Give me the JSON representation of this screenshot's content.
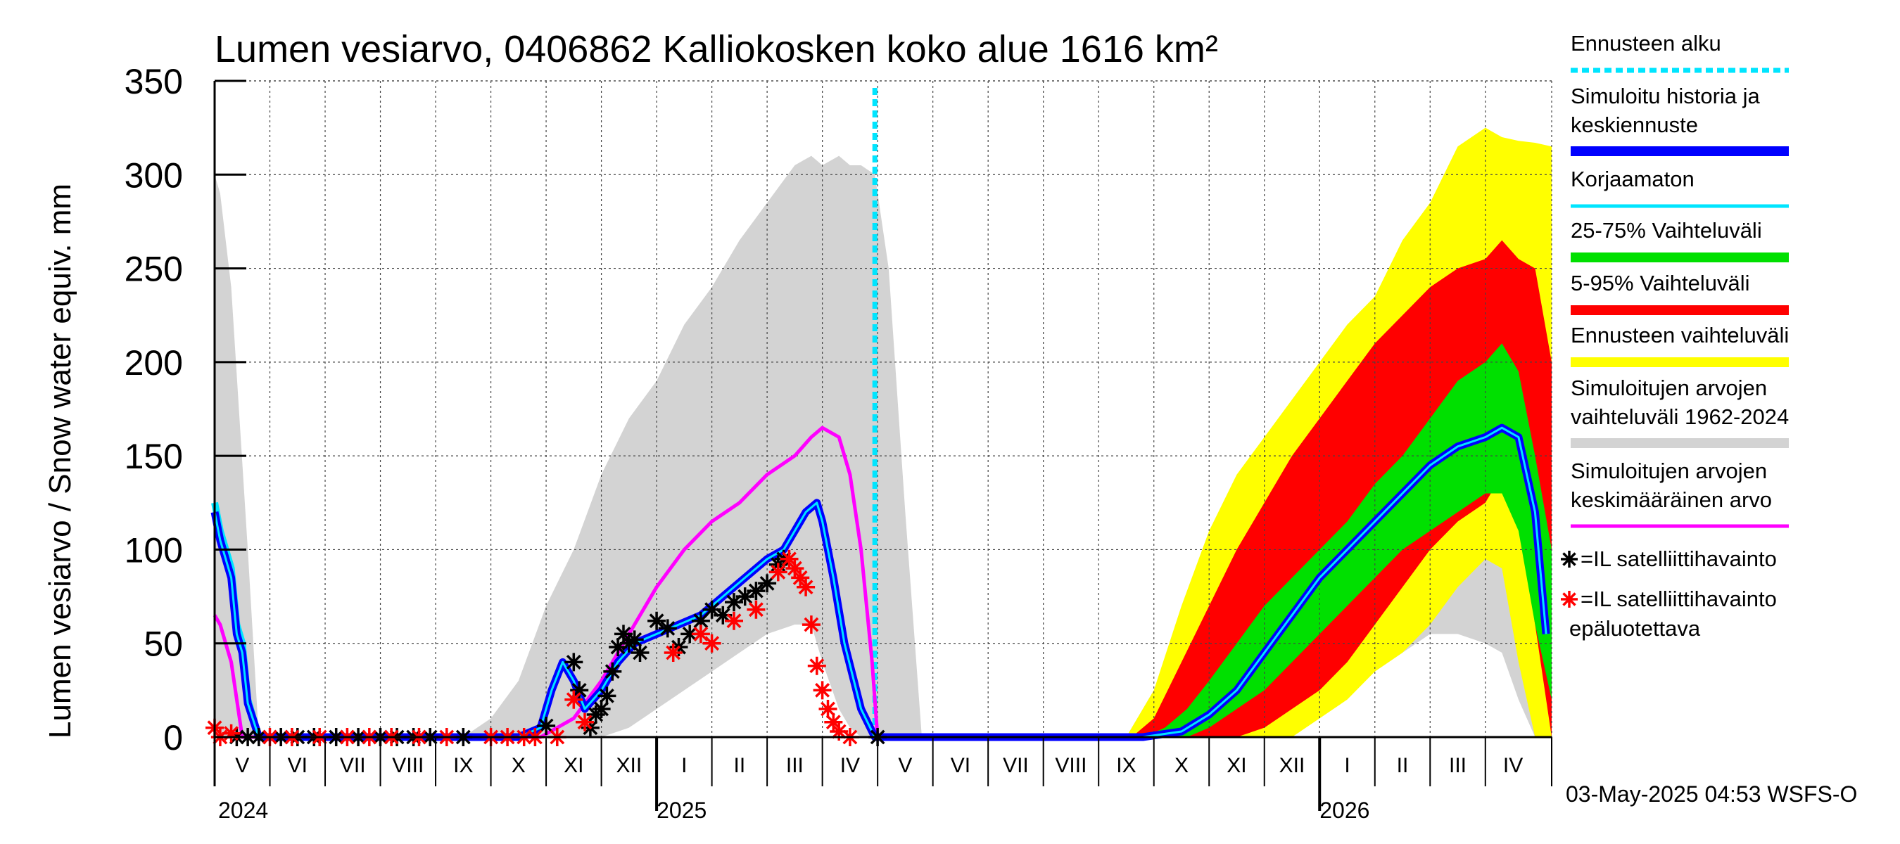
{
  "chart_data": {
    "type": "area",
    "title": "Lumen vesiarvo, 0406862 Kalliokosken koko alue 1616 km²",
    "ylabel": "Lumen vesiarvo / Snow water equiv.    mm",
    "ylim": [
      0,
      350
    ],
    "yticks": [
      0,
      50,
      100,
      150,
      200,
      250,
      300,
      350
    ],
    "x_unit": "month index (0 = 1 May 2024)",
    "xlim": [
      0,
      24.2
    ],
    "forecast_start": 11.95,
    "months": [
      {
        "label": "V",
        "x": 0
      },
      {
        "label": "VI",
        "x": 1
      },
      {
        "label": "VII",
        "x": 2
      },
      {
        "label": "VIII",
        "x": 3
      },
      {
        "label": "IX",
        "x": 4
      },
      {
        "label": "X",
        "x": 5
      },
      {
        "label": "XI",
        "x": 6
      },
      {
        "label": "XII",
        "x": 7
      },
      {
        "label": "I",
        "x": 8
      },
      {
        "label": "II",
        "x": 9
      },
      {
        "label": "III",
        "x": 10
      },
      {
        "label": "IV",
        "x": 11
      },
      {
        "label": "V",
        "x": 12
      },
      {
        "label": "VI",
        "x": 13
      },
      {
        "label": "VII",
        "x": 14
      },
      {
        "label": "VIII",
        "x": 15
      },
      {
        "label": "IX",
        "x": 16
      },
      {
        "label": "X",
        "x": 17
      },
      {
        "label": "XI",
        "x": 18
      },
      {
        "label": "XII",
        "x": 19
      },
      {
        "label": "I",
        "x": 20
      },
      {
        "label": "II",
        "x": 21
      },
      {
        "label": "III",
        "x": 22
      },
      {
        "label": "IV",
        "x": 23
      }
    ],
    "years": [
      {
        "label": "2024",
        "x": 0
      },
      {
        "label": "2025",
        "x": 8
      },
      {
        "label": "2026",
        "x": 20
      }
    ],
    "series": [
      {
        "name": "Simuloitujen arvojen vaihteluväli 1962-2024",
        "color": "#d3d3d3",
        "kind": "band",
        "x": [
          0,
          0.1,
          0.3,
          0.6,
          0.8,
          4.5,
          5.0,
          5.5,
          6.0,
          6.5,
          7.0,
          7.5,
          8.0,
          8.5,
          9.0,
          9.5,
          10.0,
          10.5,
          10.8,
          11.0,
          11.3,
          11.5,
          11.7,
          11.95,
          12.2,
          12.5,
          12.8,
          16.5,
          17.0,
          17.5,
          18.0,
          18.5,
          19.0,
          19.5,
          20.0,
          20.5,
          21.0,
          21.5,
          22.0,
          22.5,
          23.0,
          23.3,
          23.6,
          23.9,
          24.2
        ],
        "upper": [
          300,
          290,
          240,
          100,
          0,
          0,
          10,
          30,
          70,
          100,
          140,
          170,
          190,
          220,
          240,
          265,
          285,
          305,
          310,
          305,
          310,
          305,
          305,
          300,
          250,
          120,
          0,
          0,
          25,
          60,
          100,
          130,
          150,
          170,
          190,
          210,
          230,
          255,
          275,
          300,
          310,
          315,
          305,
          300,
          300
        ],
        "lower": [
          0,
          0,
          0,
          0,
          0,
          0,
          0,
          0,
          0,
          0,
          0,
          5,
          15,
          25,
          35,
          45,
          55,
          60,
          60,
          40,
          15,
          5,
          0,
          0,
          0,
          0,
          0,
          0,
          0,
          0,
          0,
          0,
          0,
          5,
          15,
          25,
          35,
          45,
          55,
          55,
          50,
          45,
          20,
          0,
          0
        ]
      },
      {
        "name": "Ennusteen vaihteluväli",
        "color": "#ffff00",
        "kind": "band",
        "x": [
          16.5,
          17.0,
          17.5,
          18.0,
          18.5,
          19.0,
          19.5,
          20.0,
          20.5,
          21.0,
          21.5,
          22.0,
          22.5,
          23.0,
          23.3,
          23.6,
          23.9,
          24.2
        ],
        "upper": [
          0,
          25,
          70,
          110,
          140,
          160,
          180,
          200,
          220,
          235,
          265,
          285,
          315,
          325,
          320,
          318,
          317,
          315
        ],
        "lower": [
          0,
          0,
          0,
          0,
          0,
          0,
          0,
          10,
          20,
          35,
          45,
          60,
          80,
          95,
          90,
          40,
          0,
          0
        ]
      },
      {
        "name": "5-95% Vaihteluväli",
        "color": "#ff0000",
        "kind": "band",
        "x": [
          16.6,
          17.0,
          17.5,
          18.0,
          18.5,
          19.0,
          19.5,
          20.0,
          20.5,
          21.0,
          21.5,
          22.0,
          22.5,
          23.0,
          23.3,
          23.6,
          23.9,
          24.2
        ],
        "upper": [
          0,
          10,
          40,
          70,
          100,
          125,
          150,
          170,
          190,
          210,
          225,
          240,
          250,
          255,
          265,
          255,
          250,
          200
        ],
        "lower": [
          0,
          0,
          0,
          0,
          0,
          5,
          15,
          25,
          40,
          60,
          80,
          100,
          115,
          125,
          140,
          120,
          60,
          0
        ]
      },
      {
        "name": "25-75% Vaihteluväli",
        "color": "#00e000",
        "kind": "band",
        "x": [
          16.8,
          17.2,
          17.6,
          18.0,
          18.5,
          19.0,
          19.5,
          20.0,
          20.5,
          21.0,
          21.5,
          22.0,
          22.5,
          23.0,
          23.3,
          23.6,
          23.9,
          24.2
        ],
        "upper": [
          0,
          5,
          15,
          30,
          50,
          70,
          85,
          100,
          115,
          135,
          150,
          170,
          190,
          200,
          210,
          195,
          150,
          100
        ],
        "lower": [
          0,
          0,
          0,
          5,
          15,
          25,
          40,
          55,
          70,
          85,
          100,
          110,
          120,
          130,
          130,
          110,
          60,
          20
        ]
      },
      {
        "name": "Simuloitujen arvojen keskimääräinen arvo",
        "color": "#ff00ff",
        "kind": "line",
        "width": 5,
        "x": [
          0,
          0.1,
          0.3,
          0.5,
          5.9,
          6.5,
          7.0,
          7.5,
          8.0,
          8.5,
          9.0,
          9.5,
          10.0,
          10.5,
          10.8,
          11.0,
          11.3,
          11.5,
          11.7,
          11.9,
          12.0,
          16.8,
          17.5,
          18.0,
          18.5,
          19.0,
          19.5,
          20.0,
          20.5,
          21.0,
          21.5,
          22.0,
          22.5,
          23.0,
          23.3,
          23.6,
          23.9,
          24.1
        ],
        "y": [
          65,
          60,
          40,
          0,
          0,
          10,
          30,
          55,
          80,
          100,
          115,
          125,
          140,
          150,
          160,
          165,
          160,
          140,
          100,
          40,
          0,
          0,
          3,
          12,
          25,
          45,
          65,
          85,
          100,
          115,
          130,
          145,
          155,
          160,
          165,
          160,
          120,
          55
        ]
      },
      {
        "name": "Korjaamaton",
        "color": "#00e5ff",
        "kind": "line",
        "width": 10,
        "x": [
          0,
          0.1,
          0.3,
          0.4,
          0.5,
          0.6,
          0.8,
          5.5,
          5.9,
          6.1,
          6.3,
          6.5,
          6.7,
          7.0,
          7.3,
          7.6,
          8.0,
          8.4,
          8.8,
          9.2,
          9.6,
          10.0,
          10.3,
          10.5,
          10.7,
          10.9,
          11.0,
          11.2,
          11.4,
          11.7,
          11.95,
          12.0,
          16.8,
          17.5,
          18.0,
          18.5,
          19.0,
          19.5,
          20.0,
          20.5,
          21.0,
          21.5,
          22.0,
          22.5,
          23.0,
          23.3,
          23.6,
          23.9,
          24.1
        ],
        "y": [
          125,
          110,
          90,
          60,
          50,
          20,
          0,
          0,
          5,
          25,
          40,
          30,
          15,
          25,
          40,
          50,
          55,
          60,
          65,
          75,
          85,
          95,
          100,
          110,
          120,
          125,
          115,
          85,
          50,
          15,
          0,
          0,
          0,
          3,
          12,
          25,
          45,
          65,
          85,
          100,
          115,
          130,
          145,
          155,
          160,
          165,
          160,
          120,
          55
        ]
      },
      {
        "name": "Simuloitu historia ja keskiennuste",
        "color": "#0000ff",
        "kind": "line",
        "width": 7,
        "x": [
          0,
          0.1,
          0.3,
          0.4,
          0.5,
          0.6,
          0.8,
          5.5,
          5.9,
          6.1,
          6.3,
          6.5,
          6.7,
          7.0,
          7.3,
          7.6,
          8.0,
          8.4,
          8.8,
          9.2,
          9.6,
          10.0,
          10.3,
          10.5,
          10.7,
          10.9,
          11.0,
          11.2,
          11.4,
          11.7,
          11.95,
          12.0,
          16.8,
          17.5,
          18.0,
          18.5,
          19.0,
          19.5,
          20.0,
          20.5,
          21.0,
          21.5,
          22.0,
          22.5,
          23.0,
          23.3,
          23.6,
          23.9,
          24.1
        ],
        "y": [
          120,
          105,
          85,
          55,
          45,
          18,
          0,
          0,
          5,
          25,
          40,
          30,
          15,
          25,
          40,
          50,
          55,
          60,
          65,
          75,
          85,
          95,
          100,
          110,
          120,
          125,
          115,
          85,
          50,
          15,
          0,
          0,
          0,
          3,
          12,
          25,
          45,
          65,
          85,
          100,
          115,
          130,
          145,
          155,
          160,
          165,
          160,
          120,
          55
        ]
      }
    ],
    "observations": [
      {
        "name": "=IL satelliittihavainto",
        "color": "#000000",
        "points": [
          [
            0.4,
            0
          ],
          [
            0.6,
            0
          ],
          [
            0.8,
            0
          ],
          [
            1.2,
            0
          ],
          [
            1.5,
            0
          ],
          [
            1.8,
            0
          ],
          [
            2.2,
            0
          ],
          [
            2.6,
            0
          ],
          [
            3.0,
            0
          ],
          [
            3.3,
            0
          ],
          [
            3.6,
            0
          ],
          [
            3.9,
            0
          ],
          [
            4.5,
            0
          ],
          [
            6.0,
            6
          ],
          [
            6.5,
            40
          ],
          [
            6.6,
            25
          ],
          [
            6.8,
            5
          ],
          [
            6.9,
            12
          ],
          [
            7.0,
            15
          ],
          [
            7.1,
            22
          ],
          [
            7.2,
            35
          ],
          [
            7.3,
            48
          ],
          [
            7.4,
            55
          ],
          [
            7.5,
            50
          ],
          [
            7.6,
            52
          ],
          [
            7.7,
            45
          ],
          [
            8.0,
            62
          ],
          [
            8.2,
            58
          ],
          [
            8.4,
            48
          ],
          [
            8.6,
            55
          ],
          [
            8.8,
            62
          ],
          [
            9.0,
            68
          ],
          [
            9.2,
            65
          ],
          [
            9.4,
            72
          ],
          [
            9.6,
            75
          ],
          [
            9.8,
            78
          ],
          [
            10.0,
            82
          ],
          [
            10.2,
            92
          ],
          [
            10.3,
            95
          ],
          [
            12.0,
            0
          ]
        ]
      },
      {
        "name": "=IL satelliittihavainto epäluotettava",
        "color": "#ff0000",
        "points": [
          [
            0.0,
            5
          ],
          [
            0.1,
            0
          ],
          [
            0.3,
            2
          ],
          [
            1.0,
            0
          ],
          [
            1.4,
            0
          ],
          [
            1.9,
            0
          ],
          [
            2.4,
            0
          ],
          [
            2.8,
            0
          ],
          [
            3.2,
            0
          ],
          [
            3.7,
            0
          ],
          [
            4.2,
            0
          ],
          [
            5.0,
            0
          ],
          [
            5.3,
            0
          ],
          [
            5.6,
            0
          ],
          [
            5.8,
            0
          ],
          [
            6.2,
            0
          ],
          [
            6.5,
            20
          ],
          [
            6.7,
            8
          ],
          [
            8.3,
            45
          ],
          [
            8.8,
            55
          ],
          [
            9.0,
            50
          ],
          [
            9.4,
            62
          ],
          [
            9.8,
            68
          ],
          [
            10.2,
            88
          ],
          [
            10.4,
            95
          ],
          [
            10.5,
            90
          ],
          [
            10.6,
            85
          ],
          [
            10.7,
            80
          ],
          [
            10.8,
            60
          ],
          [
            10.9,
            38
          ],
          [
            11.0,
            25
          ],
          [
            11.1,
            15
          ],
          [
            11.2,
            8
          ],
          [
            11.3,
            3
          ],
          [
            11.5,
            0
          ]
        ]
      }
    ],
    "legend": [
      {
        "label": "Ennusteen alku",
        "color": "#00e5ff",
        "style": "dashed"
      },
      {
        "label": "Simuloitu historia ja",
        "label2": "keskiennuste",
        "color": "#0000ff",
        "style": "thick"
      },
      {
        "label": "Korjaamaton",
        "color": "#00e5ff",
        "style": "thin"
      },
      {
        "label": "25-75% Vaihteluväli",
        "color": "#00e000",
        "style": "thick"
      },
      {
        "label": "5-95% Vaihteluväli",
        "color": "#ff0000",
        "style": "thick"
      },
      {
        "label": "Ennusteen vaihteluväli",
        "color": "#ffff00",
        "style": "thick"
      },
      {
        "label": "Simuloitujen arvojen",
        "label2": "vaihteluväli 1962-2024",
        "color": "#d3d3d3",
        "style": "thick"
      },
      {
        "label": "Simuloitujen arvojen",
        "label2": "keskimääräinen arvo",
        "color": "#ff00ff",
        "style": "thin"
      },
      {
        "label": "=IL satelliittihavainto",
        "color": "#000000",
        "style": "star"
      },
      {
        "label": "=IL satelliittihavainto",
        "label2": "epäluotettava",
        "color": "#ff0000",
        "style": "star"
      }
    ],
    "footer": "03-May-2025 04:53 WSFS-O"
  }
}
